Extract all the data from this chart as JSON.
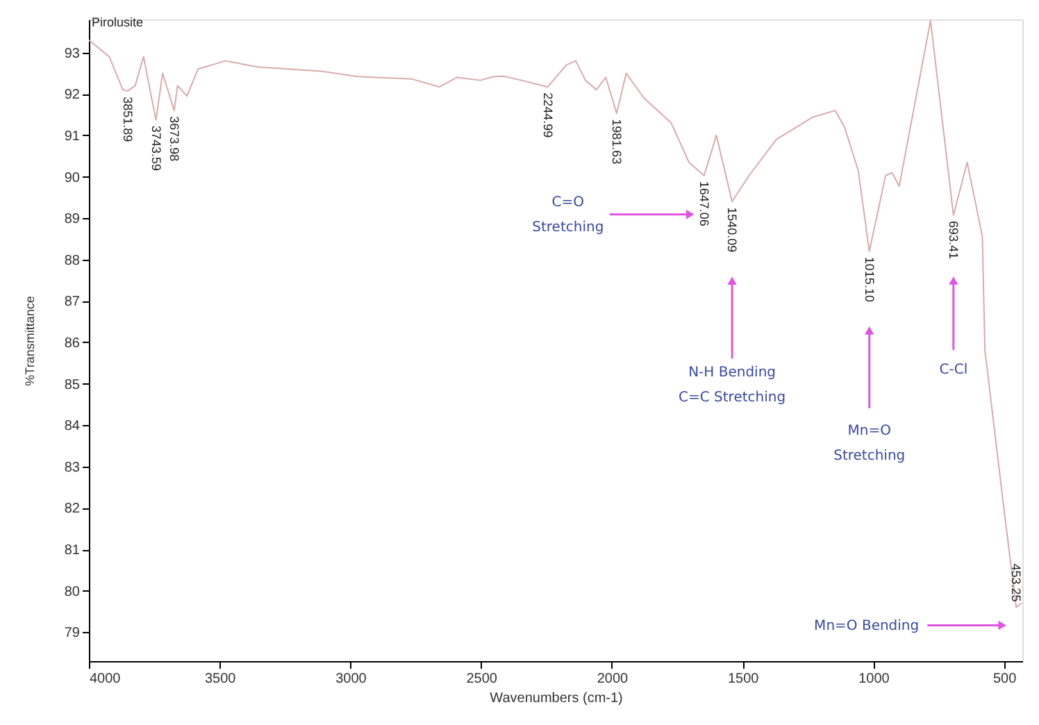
{
  "chart_data": {
    "type": "line",
    "title": "Pirolusite",
    "xlabel": "Wavenumbers (cm-1)",
    "ylabel": "%Transmittance",
    "xlim": [
      4000,
      430
    ],
    "ylim": [
      78.3,
      93.8
    ],
    "xticks": [
      4000,
      3500,
      3000,
      2500,
      2000,
      1500,
      1000,
      500
    ],
    "yticks": [
      79,
      80,
      81,
      82,
      83,
      84,
      85,
      86,
      87,
      88,
      89,
      90,
      91,
      92,
      93
    ],
    "grid": false,
    "marker": "none",
    "line_style": "solid",
    "series": [
      {
        "color": "#d9abab",
        "x": [
          4000,
          3922,
          3870,
          3851.89,
          3823,
          3791,
          3743.59,
          3718,
          3673.98,
          3661,
          3625,
          3583,
          3478,
          3353,
          3113,
          2972,
          2764,
          2659,
          2592,
          2503,
          2451,
          2414,
          2346,
          2244.99,
          2174,
          2138,
          2101,
          2059,
          2023,
          1981.63,
          1945,
          1877,
          1773,
          1705,
          1647.06,
          1600,
          1540.09,
          1475,
          1371,
          1235,
          1146,
          1110,
          1058,
          1015.1,
          953,
          928,
          901,
          781,
          693.41,
          641,
          583,
          573,
          495,
          453.25,
          432
        ],
        "values": [
          93.3,
          92.9,
          92.1,
          92.07,
          92.2,
          92.9,
          91.37,
          92.5,
          91.6,
          92.2,
          91.95,
          92.6,
          92.8,
          92.65,
          92.55,
          92.42,
          92.36,
          92.17,
          92.4,
          92.33,
          92.42,
          92.43,
          92.33,
          92.17,
          92.7,
          92.8,
          92.33,
          92.1,
          92.4,
          91.53,
          92.5,
          91.9,
          91.3,
          90.35,
          90.03,
          91.0,
          89.4,
          90.03,
          90.9,
          91.43,
          91.6,
          91.2,
          90.16,
          88.2,
          90.03,
          90.1,
          89.77,
          93.77,
          89.07,
          90.35,
          88.56,
          85.8,
          81.7,
          79.6,
          79.7
        ]
      }
    ],
    "annotations": [
      {
        "text": "3851.89",
        "x": 3851.89,
        "y": 92.07
      },
      {
        "text": "3743.59",
        "x": 3743.59,
        "y": 91.37
      },
      {
        "text": "3673.98",
        "x": 3673.98,
        "y": 91.6
      },
      {
        "text": "2244.99",
        "x": 2244.99,
        "y": 92.17
      },
      {
        "text": "1981.63",
        "x": 1981.63,
        "y": 91.53
      },
      {
        "text": "1647.06",
        "x": 1647.06,
        "y": 90.03
      },
      {
        "text": "1540.09",
        "x": 1540.09,
        "y": 89.4
      },
      {
        "text": "1015.10",
        "x": 1015.1,
        "y": 88.2
      },
      {
        "text": "693.41",
        "x": 693.41,
        "y": 89.07
      },
      {
        "text": "453.25",
        "x": 453.25,
        "y": 79.6
      },
      "C=O\nStretching",
      "N-H Bending\nC=C Stretching",
      "Mn=O\nStretching",
      "C-Cl",
      "Mn=O Bending"
    ]
  }
}
